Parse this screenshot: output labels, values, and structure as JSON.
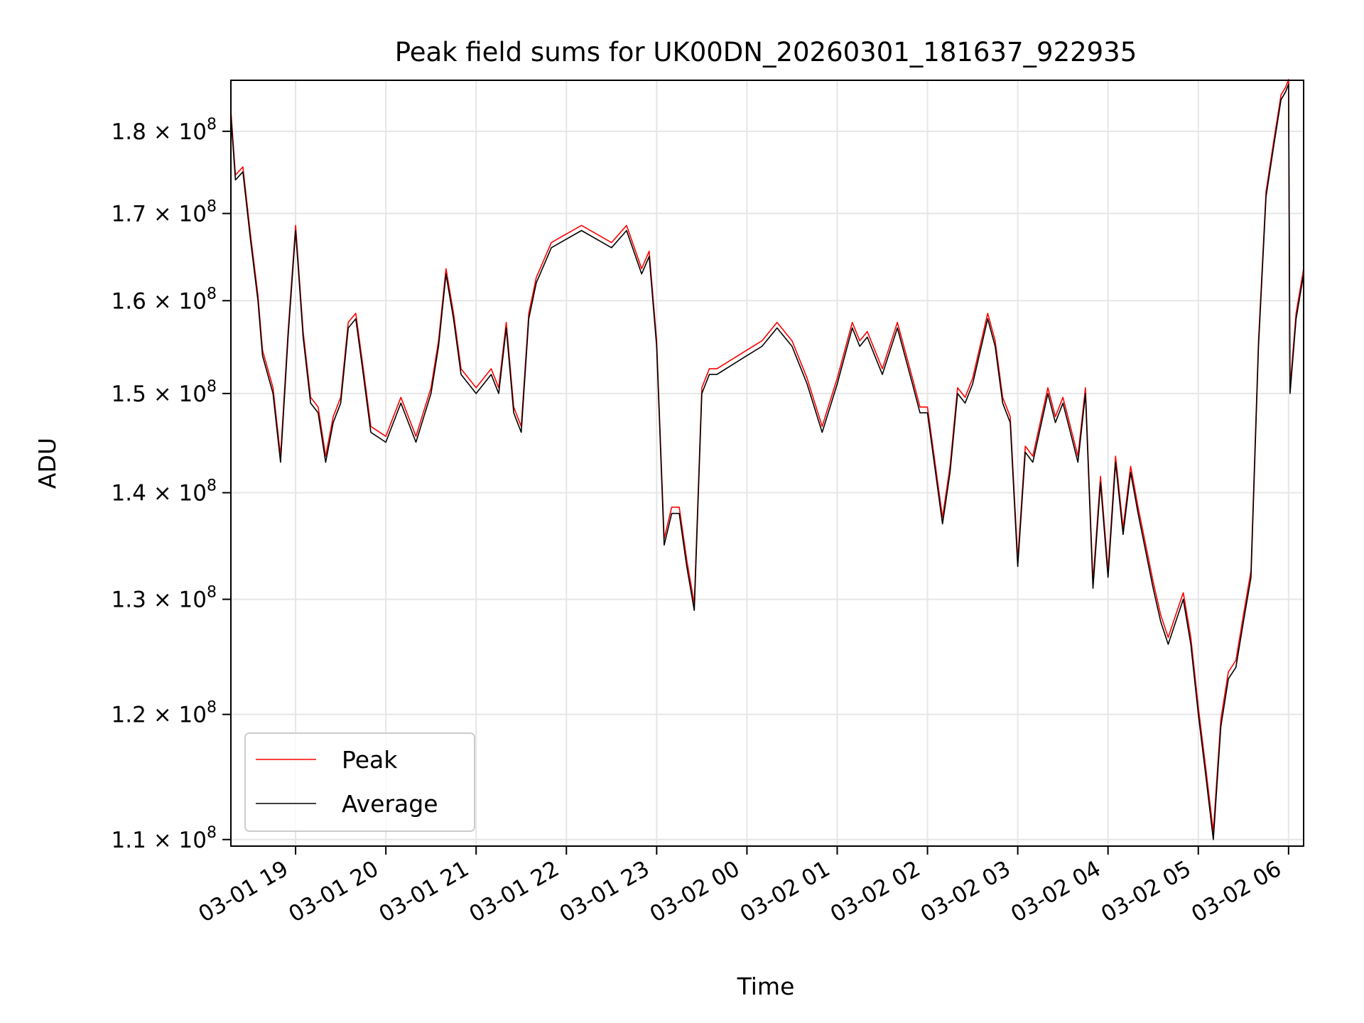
{
  "chart_data": {
    "type": "line",
    "title": "Peak field sums for UK00DN_20260301_181637_922935",
    "xlabel": "Time",
    "ylabel": "ADU",
    "yscale": "log",
    "ylim": [
      109500000,
      186500000
    ],
    "xlim": [
      "2026-03-01 18:17",
      "2026-03-02 06:10"
    ],
    "x_ticks": [
      {
        "t": "2026-03-01 19:00",
        "label": "03-01 19"
      },
      {
        "t": "2026-03-01 20:00",
        "label": "03-01 20"
      },
      {
        "t": "2026-03-01 21:00",
        "label": "03-01 21"
      },
      {
        "t": "2026-03-01 22:00",
        "label": "03-01 22"
      },
      {
        "t": "2026-03-01 23:00",
        "label": "03-01 23"
      },
      {
        "t": "2026-03-02 00:00",
        "label": "03-02 00"
      },
      {
        "t": "2026-03-02 01:00",
        "label": "03-02 01"
      },
      {
        "t": "2026-03-02 02:00",
        "label": "03-02 02"
      },
      {
        "t": "2026-03-02 03:00",
        "label": "03-02 03"
      },
      {
        "t": "2026-03-02 04:00",
        "label": "03-02 04"
      },
      {
        "t": "2026-03-02 05:00",
        "label": "03-02 05"
      },
      {
        "t": "2026-03-02 06:00",
        "label": "03-02 06"
      }
    ],
    "y_ticks": [
      {
        "v": 110000000,
        "mantissa": "1.1",
        "exp": "8"
      },
      {
        "v": 120000000,
        "mantissa": "1.2",
        "exp": "8"
      },
      {
        "v": 130000000,
        "mantissa": "1.3",
        "exp": "8"
      },
      {
        "v": 140000000,
        "mantissa": "1.4",
        "exp": "8"
      },
      {
        "v": 150000000,
        "mantissa": "1.5",
        "exp": "8"
      },
      {
        "v": 160000000,
        "mantissa": "1.6",
        "exp": "8"
      },
      {
        "v": 170000000,
        "mantissa": "1.7",
        "exp": "8"
      },
      {
        "v": 180000000,
        "mantissa": "1.8",
        "exp": "8"
      }
    ],
    "grid": true,
    "legend_position": "lower-left",
    "series": [
      {
        "name": "Peak",
        "color": "#ff0000",
        "offset": 600000
      },
      {
        "name": "Average",
        "color": "#000000",
        "offset": 0
      }
    ],
    "x": [
      "2026-03-01 18:17",
      "2026-03-01 18:20",
      "2026-03-01 18:25",
      "2026-03-01 18:30",
      "2026-03-01 18:35",
      "2026-03-01 18:38",
      "2026-03-01 18:45",
      "2026-03-01 18:50",
      "2026-03-01 18:55",
      "2026-03-01 19:00",
      "2026-03-01 19:05",
      "2026-03-01 19:10",
      "2026-03-01 19:15",
      "2026-03-01 19:20",
      "2026-03-01 19:25",
      "2026-03-01 19:30",
      "2026-03-01 19:35",
      "2026-03-01 19:40",
      "2026-03-01 19:45",
      "2026-03-01 19:50",
      "2026-03-01 20:00",
      "2026-03-01 20:10",
      "2026-03-01 20:20",
      "2026-03-01 20:30",
      "2026-03-01 20:35",
      "2026-03-01 20:40",
      "2026-03-01 20:45",
      "2026-03-01 20:50",
      "2026-03-01 21:00",
      "2026-03-01 21:05",
      "2026-03-01 21:10",
      "2026-03-01 21:15",
      "2026-03-01 21:20",
      "2026-03-01 21:25",
      "2026-03-01 21:30",
      "2026-03-01 21:35",
      "2026-03-01 21:40",
      "2026-03-01 21:50",
      "2026-03-01 22:00",
      "2026-03-01 22:10",
      "2026-03-01 22:20",
      "2026-03-01 22:30",
      "2026-03-01 22:40",
      "2026-03-01 22:50",
      "2026-03-01 22:55",
      "2026-03-01 23:00",
      "2026-03-01 23:05",
      "2026-03-01 23:10",
      "2026-03-01 23:15",
      "2026-03-01 23:20",
      "2026-03-01 23:25",
      "2026-03-01 23:30",
      "2026-03-01 23:35",
      "2026-03-01 23:40",
      "2026-03-01 23:50",
      "2026-03-02 00:00",
      "2026-03-02 00:10",
      "2026-03-02 00:20",
      "2026-03-02 00:30",
      "2026-03-02 00:40",
      "2026-03-02 00:50",
      "2026-03-02 01:00",
      "2026-03-02 01:10",
      "2026-03-02 01:15",
      "2026-03-02 01:20",
      "2026-03-02 01:30",
      "2026-03-02 01:40",
      "2026-03-02 01:50",
      "2026-03-02 01:55",
      "2026-03-02 02:00",
      "2026-03-02 02:10",
      "2026-03-02 02:15",
      "2026-03-02 02:20",
      "2026-03-02 02:25",
      "2026-03-02 02:30",
      "2026-03-02 02:40",
      "2026-03-02 02:45",
      "2026-03-02 02:50",
      "2026-03-02 02:55",
      "2026-03-02 03:00",
      "2026-03-02 03:05",
      "2026-03-02 03:10",
      "2026-03-02 03:20",
      "2026-03-02 03:25",
      "2026-03-02 03:30",
      "2026-03-02 03:35",
      "2026-03-02 03:40",
      "2026-03-02 03:45",
      "2026-03-02 03:50",
      "2026-03-02 03:55",
      "2026-03-02 04:00",
      "2026-03-02 04:05",
      "2026-03-02 04:10",
      "2026-03-02 04:15",
      "2026-03-02 04:20",
      "2026-03-02 04:30",
      "2026-03-02 04:35",
      "2026-03-02 04:40",
      "2026-03-02 04:45",
      "2026-03-02 04:50",
      "2026-03-02 04:55",
      "2026-03-02 05:00",
      "2026-03-02 05:05",
      "2026-03-02 05:10",
      "2026-03-02 05:15",
      "2026-03-02 05:20",
      "2026-03-02 05:25",
      "2026-03-02 05:30",
      "2026-03-02 05:35",
      "2026-03-02 05:40",
      "2026-03-02 05:45",
      "2026-03-02 05:50",
      "2026-03-02 05:55",
      "2026-03-02 05:58",
      "2026-03-02 06:00",
      "2026-03-02 06:01",
      "2026-03-02 06:05",
      "2026-03-02 06:10"
    ],
    "y": [
      182000000,
      174000000,
      175000000,
      167000000,
      160000000,
      154000000,
      150000000,
      143000000,
      156000000,
      168000000,
      156000000,
      149000000,
      148000000,
      143000000,
      147000000,
      149000000,
      157000000,
      158000000,
      152000000,
      146000000,
      145000000,
      149000000,
      145000000,
      150000000,
      155000000,
      163000000,
      158000000,
      152000000,
      150000000,
      151000000,
      152000000,
      150000000,
      157000000,
      148000000,
      146000000,
      158000000,
      162000000,
      166000000,
      167000000,
      168000000,
      167000000,
      166000000,
      168000000,
      163000000,
      165000000,
      155000000,
      135000000,
      138000000,
      138000000,
      133000000,
      129000000,
      150000000,
      152000000,
      152000000,
      153000000,
      154000000,
      155000000,
      157000000,
      155000000,
      151000000,
      146000000,
      151000000,
      157000000,
      155000000,
      156000000,
      152000000,
      157000000,
      151000000,
      148000000,
      148000000,
      137000000,
      142000000,
      150000000,
      149000000,
      151000000,
      158000000,
      155000000,
      149000000,
      147000000,
      133000000,
      144000000,
      143000000,
      150000000,
      147000000,
      149000000,
      146000000,
      143000000,
      150000000,
      131000000,
      141000000,
      132000000,
      143000000,
      136000000,
      142000000,
      138000000,
      131000000,
      128000000,
      126000000,
      128000000,
      130000000,
      126000000,
      120000000,
      115000000,
      110000000,
      119000000,
      123000000,
      124000000,
      128000000,
      132000000,
      155000000,
      172000000,
      178000000,
      184000000,
      185000000,
      186000000,
      150000000,
      158000000,
      163000000
    ]
  }
}
